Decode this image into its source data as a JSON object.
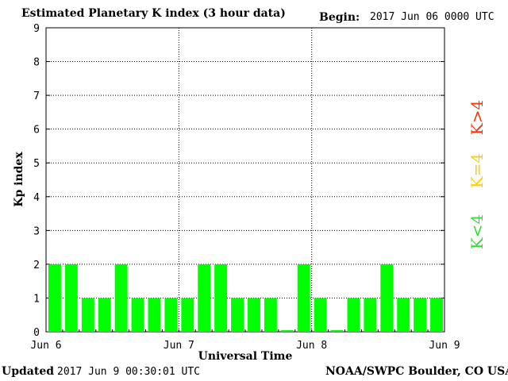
{
  "header": {
    "title": "Estimated Planetary K index (3 hour data)",
    "begin_label": "Begin:",
    "begin_value": "2017 Jun 06 0000 UTC"
  },
  "footer": {
    "updated_label": "Updated",
    "updated_value": "2017 Jun  9 00:30:01 UTC",
    "source": "NOAA/SWPC Boulder, CO USA"
  },
  "chart_data": {
    "type": "bar",
    "title": "Estimated Planetary K index (3 hour data)",
    "xlabel": "Universal Time",
    "ylabel": "Kp index",
    "ylim": [
      0,
      9
    ],
    "yticks": [
      "0",
      "1",
      "2",
      "3",
      "4",
      "5",
      "6",
      "7",
      "8",
      "9"
    ],
    "xticks": [
      "Jun 6",
      "Jun 7",
      "Jun 8",
      "Jun 9"
    ],
    "x_start": "2017-06-06 00:00 UTC",
    "x_end": "2017-06-09 00:00 UTC",
    "grid": true,
    "values": [
      2,
      2,
      1,
      1,
      2,
      1,
      1,
      1,
      1,
      2,
      2,
      1,
      1,
      1,
      0,
      2,
      1,
      0,
      1,
      1,
      2,
      1,
      1,
      1
    ],
    "bar_color": "#00ff00",
    "legend": [
      {
        "label": "K<4",
        "color": "#33dd33"
      },
      {
        "label": "K=4",
        "color": "#ffcc00"
      },
      {
        "label": "K>4",
        "color": "#ff3300"
      }
    ]
  }
}
